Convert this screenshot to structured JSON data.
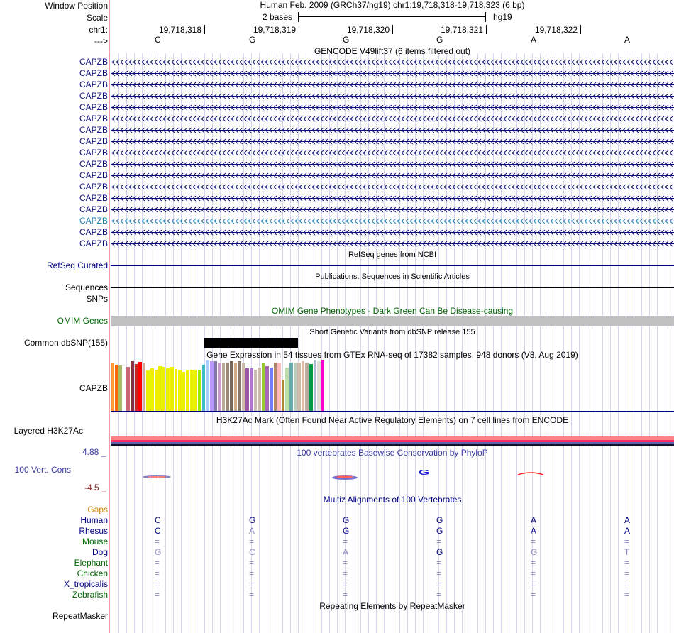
{
  "header": {
    "window_position_label": "Window Position",
    "window_position_value": "Human Feb. 2009 (GRCh37/hg19)   chr1:19,718,318-19,718,323 (6 bp)",
    "scale_label": "Scale",
    "scale_value": "2 bases",
    "scale_assembly": "hg19",
    "chrom_label": "chr1:",
    "strand_label": "--->",
    "coords": [
      "19,718,318",
      "19,718,319",
      "19,718,320",
      "19,718,321",
      "19,718,322"
    ],
    "bases": [
      "C",
      "G",
      "G",
      "G",
      "A",
      "A"
    ]
  },
  "gencode": {
    "title": "GENCODE V49lift37 (6 items filtered out)",
    "items": [
      "CAPZB",
      "CAPZB",
      "CAPZB",
      "CAPZB",
      "CAPZB",
      "CAPZB",
      "CAPZB",
      "CAPZB",
      "CAPZB",
      "CAPZB",
      "CAPZB",
      "CAPZB",
      "CAPZB",
      "CAPZB",
      "CAPZB",
      "CAPZB",
      "CAPZB"
    ],
    "highlight_index": 14,
    "colors": {
      "default": "#0c0c78",
      "highlight": "#1b7bb0"
    }
  },
  "refseq": {
    "title": "RefSeq genes from NCBI",
    "label": "RefSeq Curated"
  },
  "publications": {
    "title": "Publications: Sequences in Scientific Articles",
    "label": "Sequences"
  },
  "snps": {
    "label": "SNPs"
  },
  "omim": {
    "title": "OMIM Gene Phenotypes - Dark Green Can Be Disease-causing",
    "label": "OMIM Genes",
    "color": "#006400"
  },
  "dbsnp": {
    "title": "Short Genetic Variants from dbSNP release 155",
    "label": "Common dbSNP(155)"
  },
  "gtex": {
    "title": "Gene Expression in 54 tissues from GTEx RNA-seq of 17382 samples, 948 donors (V8, Aug 2019)",
    "label": "CAPZB",
    "bars": [
      {
        "c": "#ff9933",
        "v": 0.95
      },
      {
        "c": "#ff6600",
        "v": 0.92
      },
      {
        "c": "#aabb66",
        "v": 0.9
      },
      {
        "c": "#99ff00",
        "v": 0.0
      },
      {
        "c": "#cc6677",
        "v": 0.87
      },
      {
        "c": "#883344",
        "v": 0.98
      },
      {
        "c": "#cc2222",
        "v": 0.93
      },
      {
        "c": "#ff0000",
        "v": 0.97
      },
      {
        "c": "#ccaa99",
        "v": 0.95
      },
      {
        "c": "#eeee00",
        "v": 0.8
      },
      {
        "c": "#eeee00",
        "v": 0.84
      },
      {
        "c": "#eeee00",
        "v": 0.82
      },
      {
        "c": "#eeee00",
        "v": 0.89
      },
      {
        "c": "#eeee00",
        "v": 0.88
      },
      {
        "c": "#eeee00",
        "v": 0.85
      },
      {
        "c": "#eeee00",
        "v": 0.87
      },
      {
        "c": "#eeee00",
        "v": 0.83
      },
      {
        "c": "#eeee00",
        "v": 0.8
      },
      {
        "c": "#eeee00",
        "v": 0.78
      },
      {
        "c": "#eeee00",
        "v": 0.8
      },
      {
        "c": "#eeee00",
        "v": 0.82
      },
      {
        "c": "#eeee00",
        "v": 0.8
      },
      {
        "c": "#99ee00",
        "v": 0.82
      },
      {
        "c": "#44bbcc",
        "v": 0.92
      },
      {
        "c": "#aaccff",
        "v": 1.0
      },
      {
        "c": "#bb99ff",
        "v": 0.99
      },
      {
        "c": "#8877aa",
        "v": 0.98
      },
      {
        "c": "#cc99cc",
        "v": 0.95
      },
      {
        "c": "#bbaa99",
        "v": 0.94
      },
      {
        "c": "#998877",
        "v": 0.96
      },
      {
        "c": "#776655",
        "v": 0.98
      },
      {
        "c": "#ccaa88",
        "v": 0.96
      },
      {
        "c": "#887766",
        "v": 0.98
      },
      {
        "c": "#ccbbaa",
        "v": 0.94
      },
      {
        "c": "#9955aa",
        "v": 0.85
      },
      {
        "c": "#aa77cc",
        "v": 0.84
      },
      {
        "c": "#ccbbaa",
        "v": 0.82
      },
      {
        "c": "#ccbbaa",
        "v": 0.86
      },
      {
        "c": "#99cc33",
        "v": 0.95
      },
      {
        "c": "#aa66bb",
        "v": 0.89
      },
      {
        "c": "#7777ff",
        "v": 0.86
      },
      {
        "c": "#aa8866",
        "v": 0.96
      },
      {
        "c": "#ffbbbb",
        "v": 0.95
      },
      {
        "c": "#aa8833",
        "v": 0.62
      },
      {
        "c": "#bbddaa",
        "v": 0.86
      },
      {
        "c": "#66aaaa",
        "v": 0.96
      },
      {
        "c": "#bbccbb",
        "v": 0.96
      },
      {
        "c": "#ccbbaa",
        "v": 0.96
      },
      {
        "c": "#ddbbaa",
        "v": 0.98
      },
      {
        "c": "#bbaa99",
        "v": 0.96
      },
      {
        "c": "#009944",
        "v": 0.93
      },
      {
        "c": "#aabbcc",
        "v": 1.0
      },
      {
        "c": "#dddddd",
        "v": 0.99
      },
      {
        "c": "#ff00cc",
        "v": 1.0
      }
    ]
  },
  "h3k27ac": {
    "title": "H3K27Ac Mark (Often Found Near Active Regulatory Elements) on 7 cell lines from ENCODE",
    "label": "Layered H3K27Ac"
  },
  "conservation": {
    "title": "100 vertebrates Basewise Conservation by PhyloP",
    "label": "100 Vert. Cons",
    "max_label": "4.88 _",
    "min_label": "-4.5 _",
    "logo_letter": "G"
  },
  "multiz": {
    "title": "Multiz Alignments of 100 Vertebrates",
    "gaps_label": "Gaps",
    "species": [
      {
        "name": "Human",
        "color": "#000080",
        "bases": [
          "C",
          "G",
          "G",
          "G",
          "A",
          "A"
        ]
      },
      {
        "name": "Rhesus",
        "color": "#000080",
        "bases": [
          "C",
          "A",
          "G",
          "G",
          "A",
          "A"
        ]
      },
      {
        "name": "Mouse",
        "color": "#006400",
        "bases": [
          "=",
          "=",
          "=",
          "=",
          "=",
          "="
        ]
      },
      {
        "name": "Dog",
        "color": "#000080",
        "bases": [
          "G",
          "C",
          "A",
          "G",
          "G",
          "T"
        ]
      },
      {
        "name": "Elephant",
        "color": "#006400",
        "bases": [
          "=",
          "=",
          "=",
          "=",
          "=",
          "="
        ]
      },
      {
        "name": "Chicken",
        "color": "#006400",
        "bases": [
          "=",
          "=",
          "=",
          "=",
          "=",
          "="
        ]
      },
      {
        "name": "X_tropicalis",
        "color": "#000080",
        "bases": [
          "=",
          "=",
          "=",
          "=",
          "=",
          "="
        ]
      },
      {
        "name": "Zebrafish",
        "color": "#006400",
        "bases": [
          "=",
          "=",
          "=",
          "=",
          "=",
          "="
        ]
      }
    ],
    "gaps_color": "#cc8800"
  },
  "repeatmasker": {
    "title": "Repeating Elements by RepeatMasker",
    "label": "RepeatMasker"
  }
}
